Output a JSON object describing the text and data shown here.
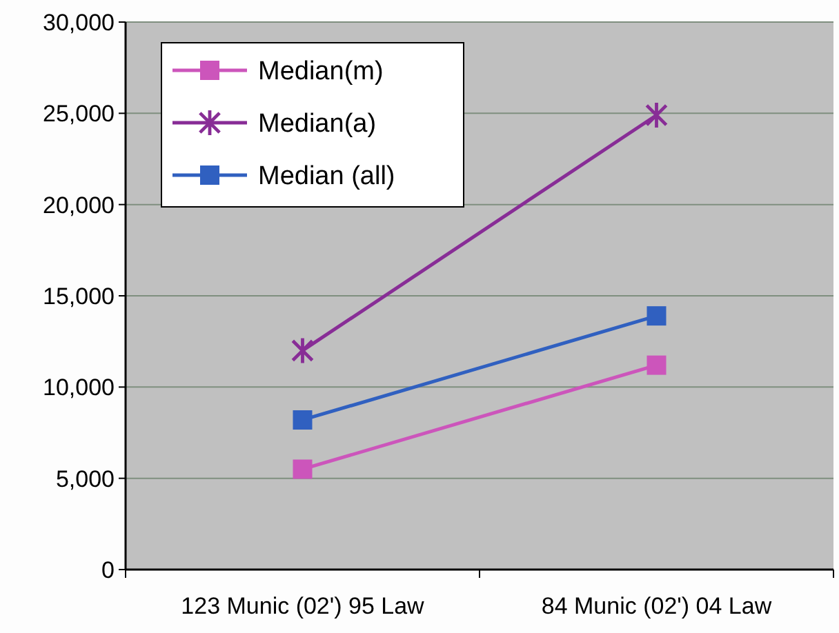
{
  "chart_data": {
    "type": "line",
    "categories": [
      "123 Munic (02') 95 Law",
      "84 Munic (02') 04 Law"
    ],
    "series": [
      {
        "name": "Median(m)",
        "color": "#cc55bb",
        "values": [
          5500,
          11200
        ],
        "marker": "square"
      },
      {
        "name": "Median(a)",
        "color": "#882d96",
        "values": [
          12000,
          24900
        ],
        "marker": "cross"
      },
      {
        "name": "Median (all)",
        "color": "#3060c0",
        "values": [
          8200,
          13900
        ],
        "marker": "square"
      }
    ],
    "ylim": [
      0,
      30000
    ],
    "yticks": [
      {
        "value": 0,
        "label": "0"
      },
      {
        "value": 5000,
        "label": "5,000"
      },
      {
        "value": 10000,
        "label": "10,000"
      },
      {
        "value": 15000,
        "label": "15,000"
      },
      {
        "value": 20000,
        "label": "20,000"
      },
      {
        "value": 25000,
        "label": "25,000"
      },
      {
        "value": 30000,
        "label": "30,000"
      }
    ],
    "grid": "y",
    "legend": "top left"
  }
}
